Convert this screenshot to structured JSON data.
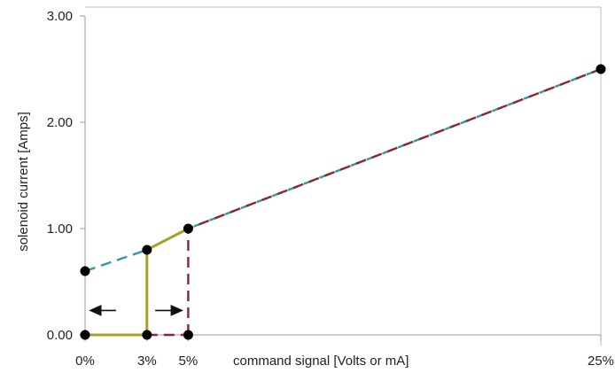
{
  "chart_data": {
    "type": "line",
    "title": "",
    "xlabel": "command signal [Volts or mA]",
    "ylabel": "solenoid current [Amps]",
    "ylim": [
      0,
      3
    ],
    "yticks": [
      {
        "value": 0,
        "label": "0.00"
      },
      {
        "value": 1,
        "label": "1.00"
      },
      {
        "value": 2,
        "label": "2.00"
      },
      {
        "value": 3,
        "label": "3.00"
      }
    ],
    "xticks": [
      {
        "value": 0,
        "label": "0%"
      },
      {
        "value": 3,
        "label": "3%"
      },
      {
        "value": 5,
        "label": "5%"
      },
      {
        "value": 25,
        "label": "25%"
      }
    ],
    "points": [
      {
        "x": 0,
        "y": 0
      },
      {
        "x": 3,
        "y": 0
      },
      {
        "x": 5,
        "y": 0
      },
      {
        "x": 0,
        "y": 0.6
      },
      {
        "x": 3,
        "y": 0.8
      },
      {
        "x": 5,
        "y": 1.0
      },
      {
        "x": 25,
        "y": 2.5
      }
    ],
    "series": [
      {
        "type": "dashed",
        "color": "#2f9aa4",
        "values": [
          [
            0,
            0.6
          ],
          [
            3,
            0.8
          ],
          [
            5,
            1.0
          ],
          [
            25,
            2.5
          ]
        ]
      },
      {
        "type": "dashed",
        "color": "#8d2532",
        "values": [
          [
            5,
            0
          ],
          [
            5,
            1.0
          ],
          [
            25,
            2.5
          ]
        ]
      },
      {
        "type": "solid",
        "color": "#a7a128",
        "values": [
          [
            0,
            0
          ],
          [
            3,
            0
          ],
          [
            3,
            0.8
          ],
          [
            5,
            1.0
          ]
        ]
      },
      {
        "type": "dashed",
        "color": "#8d2532",
        "values": [
          [
            3,
            0
          ],
          [
            5,
            0
          ]
        ]
      }
    ],
    "annotations": [
      {
        "type": "arrow",
        "from": [
          1.5,
          0.23
        ],
        "to": [
          0.25,
          0.23
        ]
      },
      {
        "type": "arrow",
        "from": [
          3.4,
          0.23
        ],
        "to": [
          4.7,
          0.23
        ]
      }
    ],
    "grid": false,
    "legend": "none"
  }
}
